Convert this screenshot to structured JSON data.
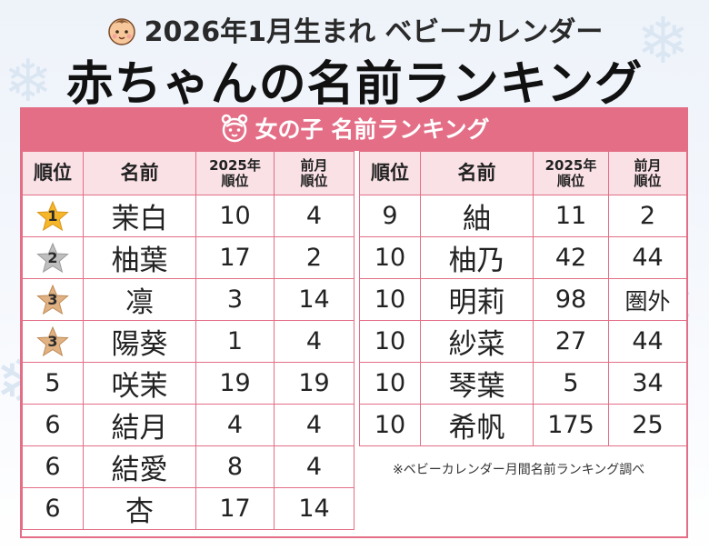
{
  "header": {
    "subtitle": "2026年1月生まれ ベビーカレンダー",
    "title": "赤ちゃんの名前ランキング"
  },
  "panel": {
    "title": "女の子 名前ランキング"
  },
  "columns": {
    "rank": "順位",
    "name": "名前",
    "rank2025_line1": "2025年",
    "rank2025_line2": "順位",
    "prev_line1": "前月",
    "prev_line2": "順位"
  },
  "left_rows": [
    {
      "rank": "1",
      "name": "茉白",
      "r2025": "10",
      "prev": "4",
      "badge": "gold"
    },
    {
      "rank": "2",
      "name": "柚葉",
      "r2025": "17",
      "prev": "2",
      "badge": "silver"
    },
    {
      "rank": "3",
      "name": "凛",
      "r2025": "3",
      "prev": "14",
      "badge": "bronze"
    },
    {
      "rank": "3",
      "name": "陽葵",
      "r2025": "1",
      "prev": "4",
      "badge": "bronze"
    },
    {
      "rank": "5",
      "name": "咲茉",
      "r2025": "19",
      "prev": "19"
    },
    {
      "rank": "6",
      "name": "結月",
      "r2025": "4",
      "prev": "4"
    },
    {
      "rank": "6",
      "name": "結愛",
      "r2025": "8",
      "prev": "4"
    },
    {
      "rank": "6",
      "name": "杏",
      "r2025": "17",
      "prev": "14"
    }
  ],
  "right_rows": [
    {
      "rank": "9",
      "name": "紬",
      "r2025": "11",
      "prev": "2"
    },
    {
      "rank": "10",
      "name": "柚乃",
      "r2025": "42",
      "prev": "44"
    },
    {
      "rank": "10",
      "name": "明莉",
      "r2025": "98",
      "prev": "圏外"
    },
    {
      "rank": "10",
      "name": "紗菜",
      "r2025": "27",
      "prev": "44"
    },
    {
      "rank": "10",
      "name": "琴葉",
      "r2025": "5",
      "prev": "34"
    },
    {
      "rank": "10",
      "name": "希帆",
      "r2025": "175",
      "prev": "25"
    }
  ],
  "note": "※ベビーカレンダー月間名前ランキング調べ",
  "colors": {
    "accent_pink": "#e36e86",
    "header_cell": "#fae1e6",
    "gold": "#f5b62a",
    "silver": "#bfbfbf",
    "bronze": "#e0b283"
  }
}
